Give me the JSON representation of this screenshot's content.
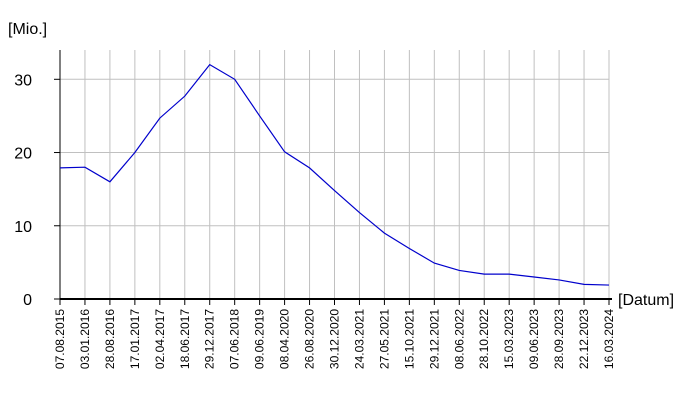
{
  "chart_data": {
    "type": "line",
    "y_label": "[Mio.]",
    "x_label": "[Datum]",
    "categories": [
      "07.08.2015",
      "03.01.2016",
      "28.08.2016",
      "17.01.2017",
      "02.04.2017",
      "18.06.2017",
      "29.12.2017",
      "07.06.2018",
      "09.06.2019",
      "08.04.2020",
      "26.08.2020",
      "30.12.2020",
      "24.03.2021",
      "27.05.2021",
      "15.10.2021",
      "29.12.2021",
      "08.06.2022",
      "28.10.2022",
      "15.03.2023",
      "09.06.2023",
      "28.09.2023",
      "22.12.2023",
      "16.03.2024"
    ],
    "series": [
      {
        "name": "Mio.",
        "color": "#0000cc",
        "values": [
          17.9,
          18.0,
          16.0,
          20.0,
          24.7,
          27.7,
          32.0,
          30.0,
          25.0,
          20.1,
          17.9,
          14.8,
          11.8,
          9.0,
          6.9,
          4.9,
          3.9,
          3.4,
          3.4,
          3.0,
          2.6,
          2.0,
          1.9
        ]
      }
    ],
    "ylim": [
      0,
      34
    ],
    "yticks": [
      0,
      10,
      20,
      30
    ],
    "grid": true
  }
}
